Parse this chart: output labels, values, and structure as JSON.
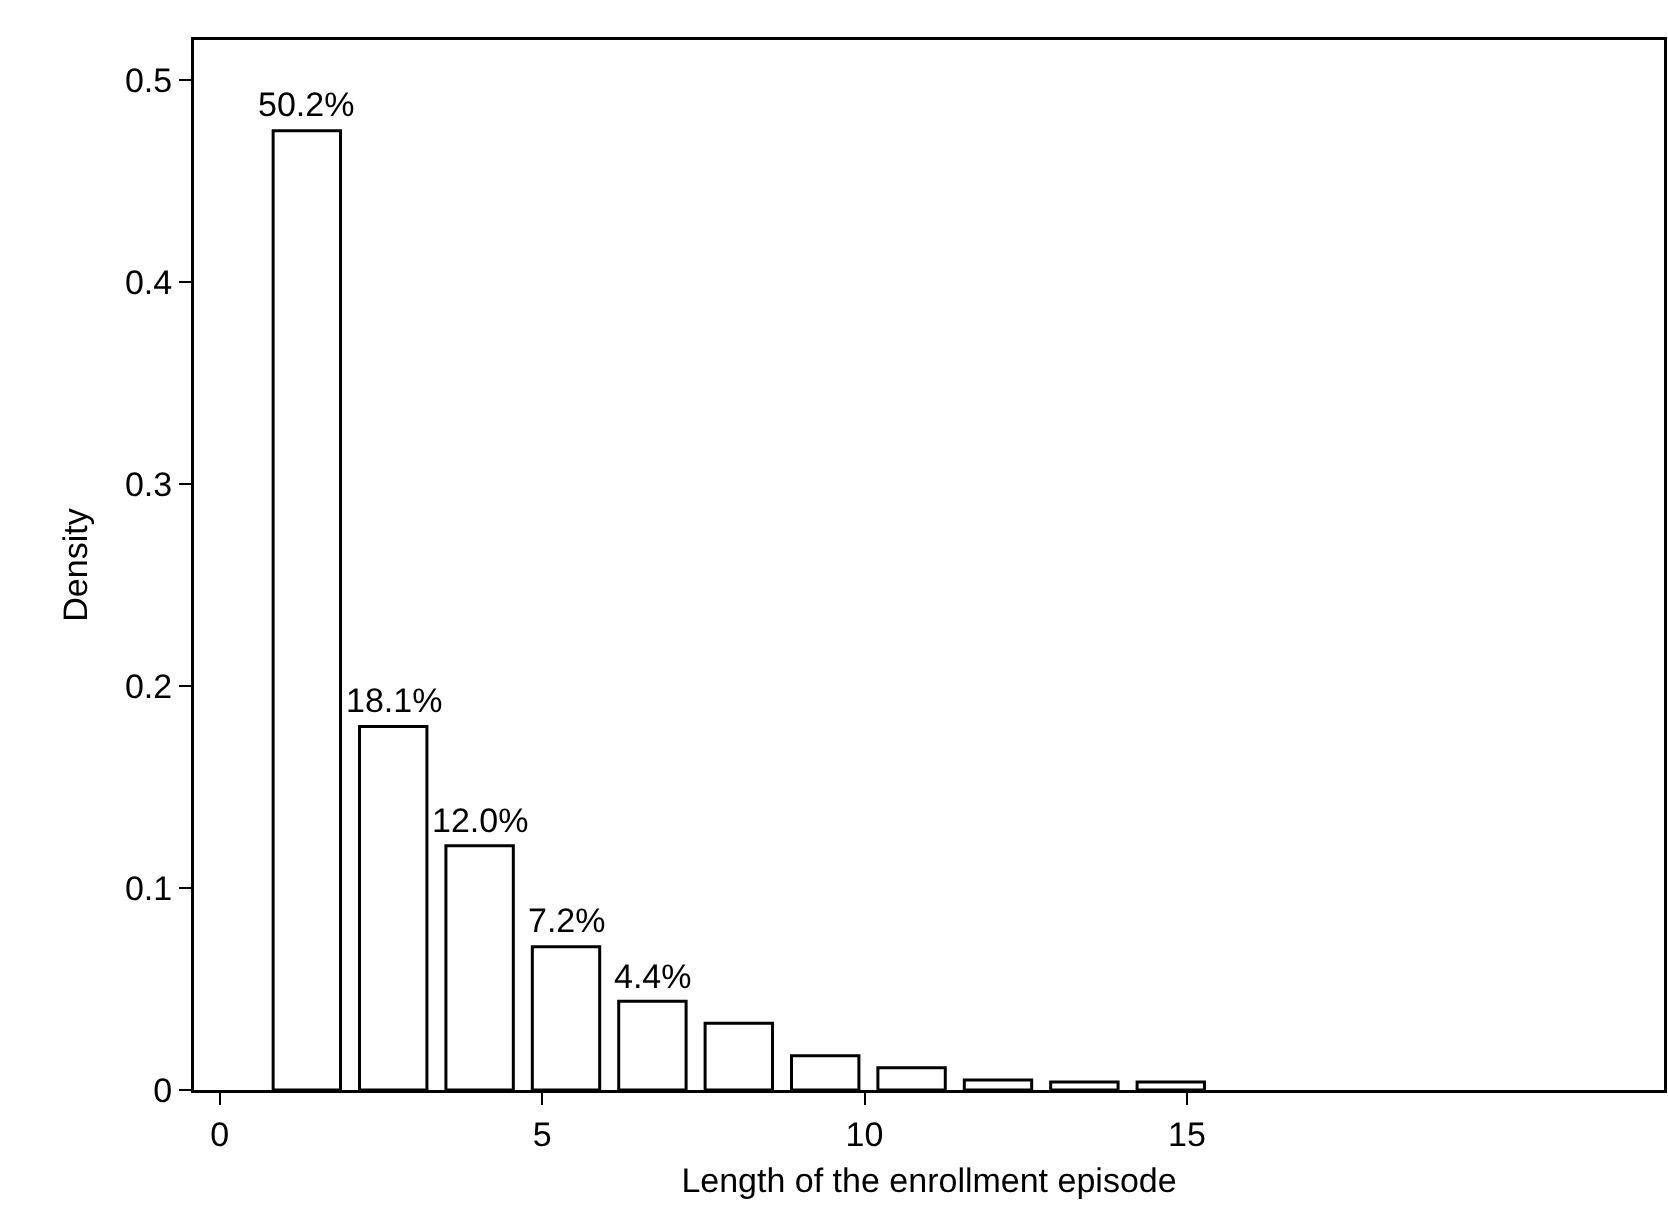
{
  "chart_data": {
    "type": "bar",
    "xlabel": "Length of the enrollment episode",
    "ylabel": "Density",
    "x": [
      1.35,
      2.69,
      4.03,
      5.37,
      6.71,
      8.05,
      9.39,
      10.73,
      12.07,
      13.41,
      14.75
    ],
    "values": [
      0.475,
      0.18,
      0.121,
      0.071,
      0.044,
      0.033,
      0.017,
      0.011,
      0.005,
      0.004,
      0.004
    ],
    "annotations": [
      {
        "text": "50.2%",
        "x": 1.35,
        "y": 0.475
      },
      {
        "text": "18.1%",
        "x": 2.69,
        "y": 0.18
      },
      {
        "text": "12.0%",
        "x": 4.03,
        "y": 0.121
      },
      {
        "text": "7.2%",
        "x": 5.37,
        "y": 0.071
      },
      {
        "text": "4.4%",
        "x": 6.71,
        "y": 0.044
      }
    ],
    "color": "#ffffff",
    "xlim": [
      -0.4,
      22.4
    ],
    "xticks": [
      0,
      5,
      10,
      15
    ],
    "ylim": [
      0,
      0.52
    ],
    "yticks": [
      0,
      0.1,
      0.2,
      0.3,
      0.4,
      0.5
    ]
  }
}
